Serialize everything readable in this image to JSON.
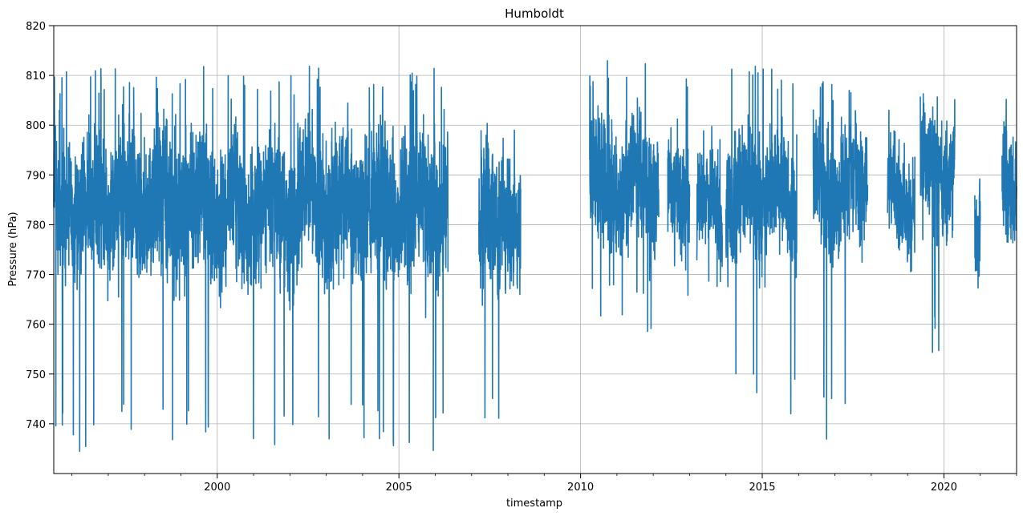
{
  "chart_data": {
    "type": "line",
    "title": "Humboldt",
    "xlabel": "timestamp",
    "ylabel": "Pressure (hPa)",
    "xlim": [
      1995.5,
      2022.0
    ],
    "ylim": [
      730,
      820
    ],
    "grid": true,
    "legend": "none",
    "series_color": "#1f77b4",
    "x_ticks": [
      {
        "value": 2000,
        "label": "2000"
      },
      {
        "value": 2005,
        "label": "2005"
      },
      {
        "value": 2010,
        "label": "2010"
      },
      {
        "value": 2015,
        "label": "2015"
      },
      {
        "value": 2020,
        "label": "2020"
      }
    ],
    "y_ticks": [
      {
        "value": 740,
        "label": "740"
      },
      {
        "value": 750,
        "label": "750"
      },
      {
        "value": 760,
        "label": "760"
      },
      {
        "value": 770,
        "label": "770"
      },
      {
        "value": 780,
        "label": "780"
      },
      {
        "value": 790,
        "label": "790"
      },
      {
        "value": 800,
        "label": "800"
      },
      {
        "value": 810,
        "label": "810"
      },
      {
        "value": 820,
        "label": "820"
      }
    ],
    "series": [
      {
        "name": "Pressure",
        "segments": [
          {
            "start": 1995.5,
            "end": 2006.35,
            "center": 784,
            "amplitude": 13,
            "min": 734.2,
            "max": 812.0
          },
          {
            "start": 2007.2,
            "end": 2008.35,
            "center": 781,
            "amplitude": 12,
            "min": 740.2,
            "max": 801.0
          },
          {
            "start": 2010.25,
            "end": 2012.15,
            "center": 788,
            "amplitude": 11,
            "min": 758.5,
            "max": 813.6
          },
          {
            "start": 2012.4,
            "end": 2013.0,
            "center": 786,
            "amplitude": 10,
            "min": 762.0,
            "max": 810.0
          },
          {
            "start": 2013.2,
            "end": 2013.9,
            "center": 784,
            "amplitude": 9,
            "min": 767.0,
            "max": 800.0
          },
          {
            "start": 2014.0,
            "end": 2015.95,
            "center": 786,
            "amplitude": 11,
            "min": 740.8,
            "max": 812.0
          },
          {
            "start": 2016.4,
            "end": 2017.9,
            "center": 788,
            "amplitude": 11,
            "min": 735.6,
            "max": 810.0
          },
          {
            "start": 2018.45,
            "end": 2019.2,
            "center": 786,
            "amplitude": 10,
            "min": 767.0,
            "max": 805.0
          },
          {
            "start": 2019.35,
            "end": 2020.3,
            "center": 791,
            "amplitude": 10,
            "min": 751.7,
            "max": 810.0
          },
          {
            "start": 2020.85,
            "end": 2021.0,
            "center": 782,
            "amplitude": 9,
            "min": 761.0,
            "max": 801.0
          },
          {
            "start": 2021.6,
            "end": 2022.0,
            "center": 788,
            "amplitude": 10,
            "min": 773.6,
            "max": 810.0
          }
        ]
      }
    ]
  }
}
